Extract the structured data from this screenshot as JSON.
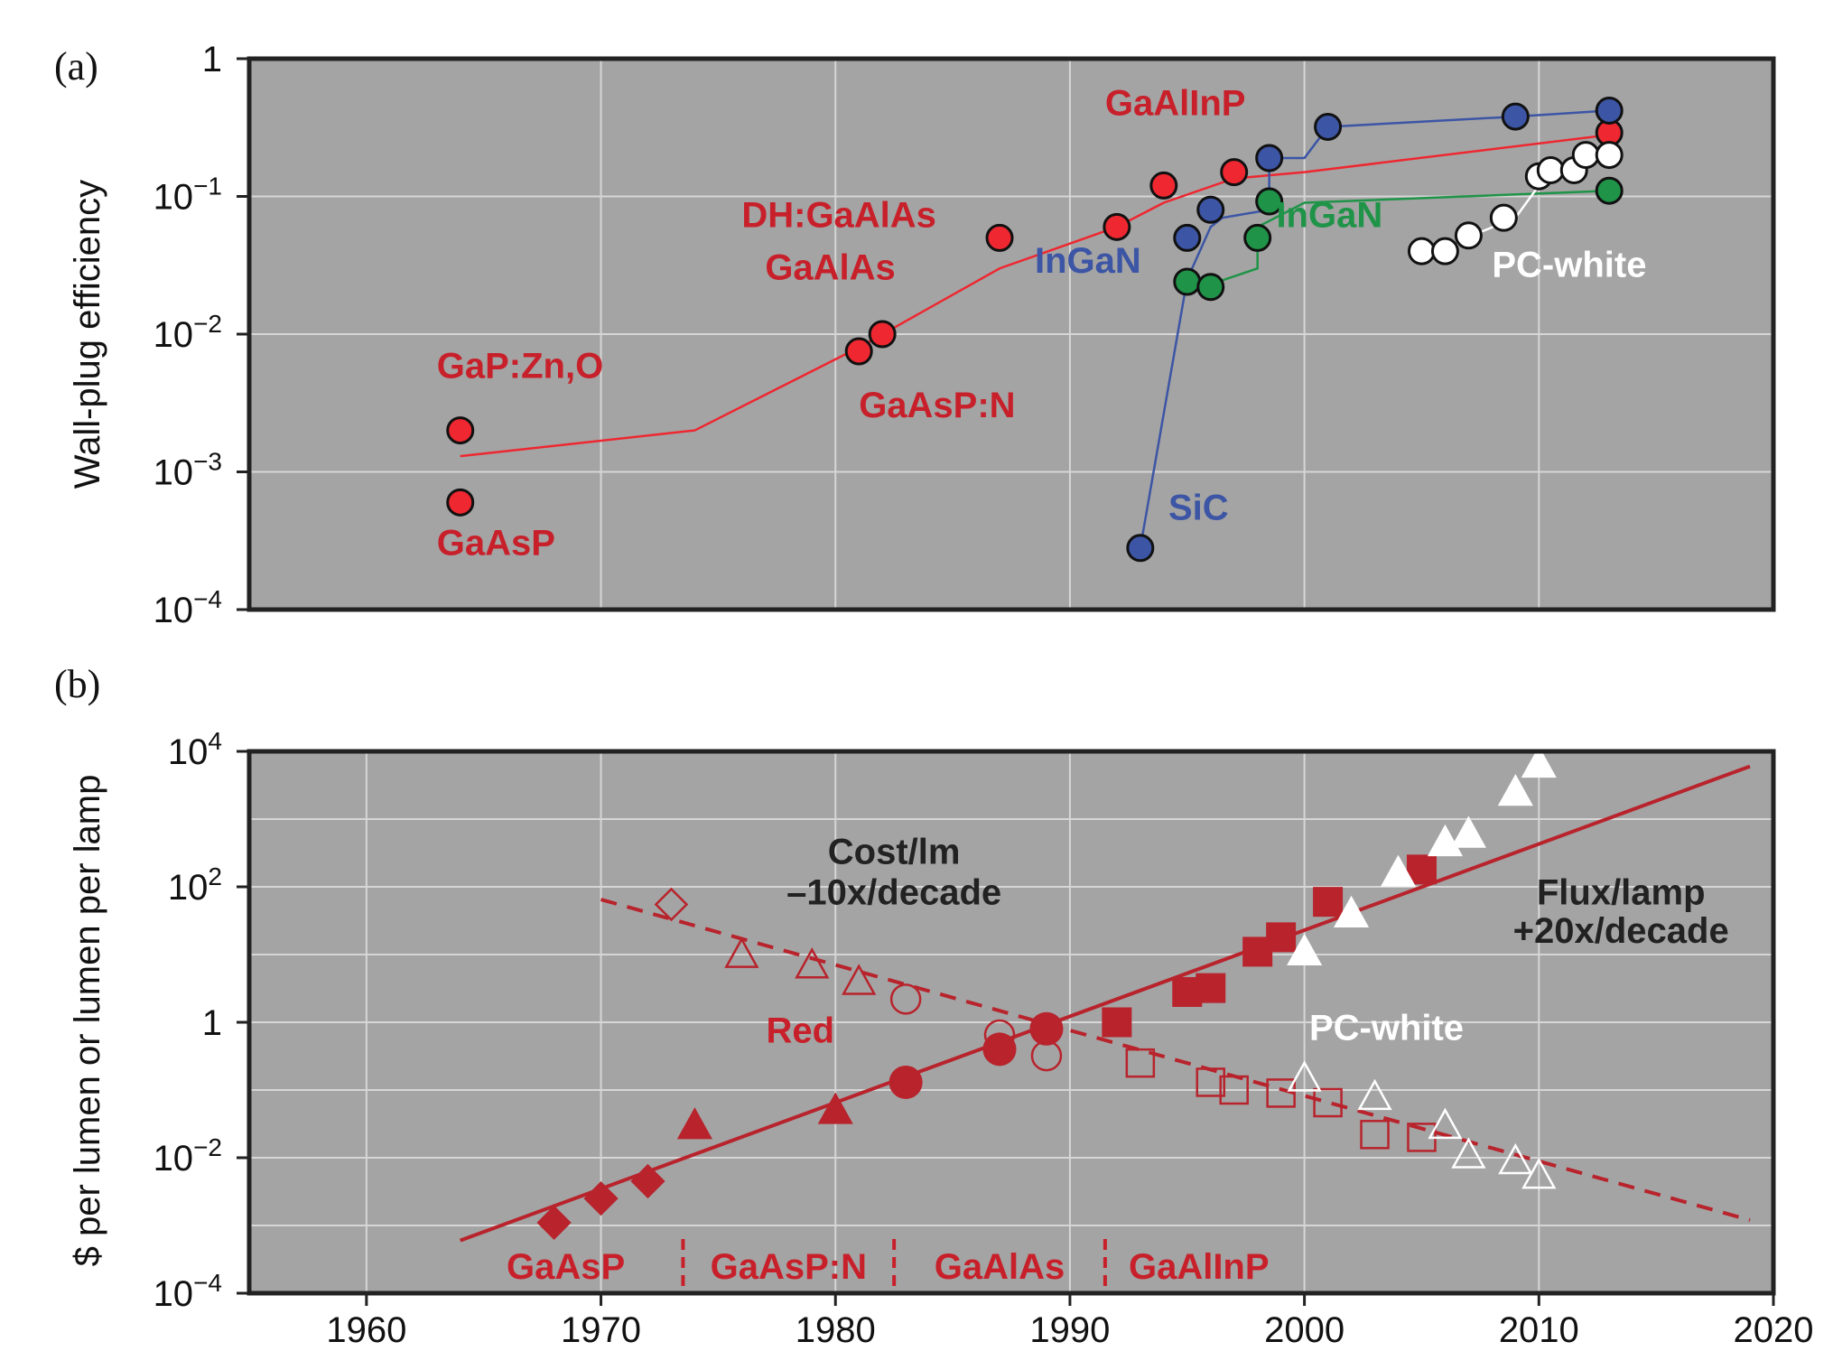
{
  "colors": {
    "panel_bg": "#a4a4a4",
    "grid": "#d6d6d6",
    "red": "#c8202a",
    "red_fill": "#ee2730",
    "blue": "#3c55a5",
    "green": "#1f9448",
    "white": "#ffffff",
    "dark": "#222222",
    "dark_red": "#b8232c"
  },
  "chart_data": [
    {
      "panel": "(a)",
      "type": "line",
      "ylabel": "Wall-plug efficiency",
      "yscale": "log",
      "ylim": [
        0.0001,
        1
      ],
      "xlim": [
        1955,
        2020
      ],
      "y_ticks": [
        {
          "value": 1,
          "label": "1",
          "exp": ""
        },
        {
          "value": 0.1,
          "label": "10",
          "exp": "−1"
        },
        {
          "value": 0.01,
          "label": "10",
          "exp": "−2"
        },
        {
          "value": 0.001,
          "label": "10",
          "exp": "−3"
        },
        {
          "value": 0.0001,
          "label": "10",
          "exp": "−4"
        }
      ],
      "x_gridlines": [
        1970,
        1980,
        1990,
        2000,
        2010
      ],
      "series": [
        {
          "color": "red",
          "line": [
            [
              1964,
              0.0013
            ],
            [
              1974,
              0.002
            ],
            [
              1981,
              0.008
            ],
            [
              1987,
              0.03
            ],
            [
              1992,
              0.06
            ],
            [
              1994,
              0.09
            ],
            [
              1997,
              0.135
            ],
            [
              2000,
              0.15
            ],
            [
              2013,
              0.28
            ]
          ],
          "points": [
            [
              1964,
              0.002
            ],
            [
              1964,
              0.0006
            ],
            [
              1981,
              0.0075
            ],
            [
              1982,
              0.01
            ],
            [
              1987,
              0.05
            ],
            [
              1992,
              0.06
            ],
            [
              1994,
              0.12
            ],
            [
              1997,
              0.15
            ],
            [
              2013,
              0.29
            ]
          ]
        },
        {
          "color": "blue",
          "line": [
            [
              1993,
              0.00028
            ],
            [
              1995,
              0.025
            ],
            [
              1996,
              0.06
            ],
            [
              1996.5,
              0.07
            ],
            [
              1998.5,
              0.08
            ],
            [
              1998.5,
              0.19
            ],
            [
              2000,
              0.19
            ],
            [
              2001,
              0.32
            ],
            [
              2009,
              0.38
            ],
            [
              2013,
              0.42
            ]
          ],
          "points": [
            [
              1993,
              0.00028
            ],
            [
              1995,
              0.05
            ],
            [
              1996,
              0.08
            ],
            [
              1998.5,
              0.19
            ],
            [
              2001,
              0.32
            ],
            [
              2009,
              0.38
            ],
            [
              2013,
              0.42
            ]
          ]
        },
        {
          "color": "green",
          "line": [
            [
              1995,
              0.024
            ],
            [
              1996,
              0.023
            ],
            [
              1998,
              0.03
            ],
            [
              1998,
              0.06
            ],
            [
              2000,
              0.09
            ],
            [
              2013,
              0.11
            ]
          ],
          "points": [
            [
              1995,
              0.024
            ],
            [
              1996,
              0.022
            ],
            [
              1998,
              0.05
            ],
            [
              1998.5,
              0.092
            ],
            [
              2013,
              0.11
            ]
          ]
        },
        {
          "color": "white",
          "line": [
            [
              2005,
              0.04
            ],
            [
              2006,
              0.04
            ],
            [
              2007.5,
              0.055
            ],
            [
              2009,
              0.07
            ],
            [
              2010,
              0.12
            ],
            [
              2010.5,
              0.15
            ],
            [
              2011,
              0.14
            ],
            [
              2011.5,
              0.19
            ],
            [
              2013,
              0.2
            ]
          ],
          "points": [
            [
              2005,
              0.04
            ],
            [
              2006,
              0.04
            ],
            [
              2007,
              0.052
            ],
            [
              2008.5,
              0.07
            ],
            [
              2010,
              0.14
            ],
            [
              2010.5,
              0.155
            ],
            [
              2011.5,
              0.155
            ],
            [
              2012,
              0.2
            ],
            [
              2013,
              0.2
            ]
          ]
        }
      ],
      "labels": [
        {
          "text": "GaP:Zn,O",
          "x": 1963,
          "y": 0.0048,
          "color": "red"
        },
        {
          "text": "GaAsP",
          "x": 1963,
          "y": 0.00025,
          "color": "red"
        },
        {
          "text": "GaAsP:N",
          "x": 1981,
          "y": 0.0025,
          "color": "red"
        },
        {
          "text": "DH:GaAlAs",
          "x": 1976,
          "y": 0.06,
          "color": "red"
        },
        {
          "text": "GaAlAs",
          "x": 1977,
          "y": 0.025,
          "color": "red"
        },
        {
          "text": "GaAlInP",
          "x": 1991.5,
          "y": 0.39,
          "color": "red"
        },
        {
          "text": "InGaN",
          "x": 1988.5,
          "y": 0.028,
          "color": "blue"
        },
        {
          "text": "InGaN",
          "x": 1998.8,
          "y": 0.06,
          "color": "green"
        },
        {
          "text": "SiC",
          "x": 1994.2,
          "y": 0.00045,
          "color": "blue"
        },
        {
          "text": "PC-white",
          "x": 2008,
          "y": 0.026,
          "color": "white"
        }
      ]
    },
    {
      "panel": "(b)",
      "type": "scatter",
      "ylabel": "$ per lumen or lumen per lamp",
      "yscale": "log",
      "ylim": [
        0.0001,
        10000
      ],
      "xlim": [
        1955,
        2020
      ],
      "x_ticks": [
        1960,
        1970,
        1980,
        1990,
        2000,
        2010,
        2020
      ],
      "y_ticks": [
        {
          "value": 10000,
          "label": "10",
          "exp": "4"
        },
        {
          "value": 100,
          "label": "10",
          "exp": "2"
        },
        {
          "value": 1,
          "label": "1",
          "exp": ""
        },
        {
          "value": 0.01,
          "label": "10",
          "exp": "−2"
        },
        {
          "value": 0.0001,
          "label": "10",
          "exp": "−4"
        }
      ],
      "trend_lines": [
        {
          "name": "Flux/lamp",
          "style": "solid",
          "from": [
            1964,
            0.0006
          ],
          "to": [
            2019,
            6000
          ]
        },
        {
          "name": "Cost/lm",
          "style": "dashed",
          "from": [
            1970,
            65
          ],
          "to": [
            2019,
            0.0012
          ]
        }
      ],
      "flux_points": [
        {
          "shape": "diamond",
          "fill": "red",
          "points": [
            [
              1968,
              0.0011
            ],
            [
              1970,
              0.0025
            ],
            [
              1972,
              0.0045
            ]
          ]
        },
        {
          "shape": "triangle",
          "fill": "red",
          "points": [
            [
              1974,
              0.03
            ],
            [
              1980,
              0.05
            ]
          ]
        },
        {
          "shape": "circle",
          "fill": "red",
          "points": [
            [
              1983,
              0.13
            ],
            [
              1987,
              0.4
            ],
            [
              1989,
              0.8
            ]
          ]
        },
        {
          "shape": "square",
          "fill": "red",
          "points": [
            [
              1992,
              1.0
            ],
            [
              1995,
              2.8
            ],
            [
              1996,
              3.2
            ],
            [
              1998,
              11
            ],
            [
              1999,
              18
            ],
            [
              2001,
              60
            ],
            [
              2005,
              180
            ]
          ]
        },
        {
          "shape": "triangle",
          "fill": "white",
          "points": [
            [
              2000,
              11
            ],
            [
              2002,
              40
            ],
            [
              2004,
              160
            ],
            [
              2006,
              450
            ],
            [
              2007,
              600
            ],
            [
              2009,
              2500
            ],
            [
              2010,
              6500
            ]
          ]
        }
      ],
      "cost_points": [
        {
          "shape": "diamond",
          "fill": "none",
          "points": [
            [
              1973,
              55
            ]
          ]
        },
        {
          "shape": "triangle",
          "fill": "none",
          "points": [
            [
              1976,
              10
            ],
            [
              1979,
              7
            ],
            [
              1981,
              4
            ]
          ]
        },
        {
          "shape": "circle",
          "fill": "none",
          "points": [
            [
              1983,
              2.2
            ],
            [
              1987,
              0.65
            ],
            [
              1989,
              0.32
            ]
          ]
        },
        {
          "shape": "square",
          "fill": "none",
          "points": [
            [
              1993,
              0.25
            ],
            [
              1996,
              0.13
            ],
            [
              1997,
              0.1
            ],
            [
              1999,
              0.09
            ],
            [
              2001,
              0.065
            ],
            [
              2003,
              0.022
            ],
            [
              2005,
              0.02
            ]
          ]
        },
        {
          "shape": "triangle",
          "fill": "white_outline",
          "points": [
            [
              2000,
              0.15
            ],
            [
              2003,
              0.08
            ],
            [
              2006,
              0.03
            ],
            [
              2007,
              0.011
            ],
            [
              2009,
              0.009
            ],
            [
              2010,
              0.0055
            ]
          ]
        }
      ],
      "labels": [
        {
          "text": "Cost/lm",
          "x": 1982.5,
          "y": 220,
          "color": "dark"
        },
        {
          "text": "–10x/decade",
          "x": 1982.5,
          "y": 55,
          "color": "dark"
        },
        {
          "text": "Red",
          "x": 1978.5,
          "y": 0.5,
          "color": "red"
        },
        {
          "text": "Flux/lamp",
          "x": 2013.5,
          "y": 55,
          "color": "dark"
        },
        {
          "text": "+20x/decade",
          "x": 2013.5,
          "y": 15,
          "color": "dark"
        },
        {
          "text": "PC-white",
          "x": 2003.5,
          "y": 0.55,
          "color": "white"
        }
      ],
      "material_bands": [
        {
          "text": "GaAsP",
          "x": 1968.5
        },
        {
          "text": "GaAsP:N",
          "x": 1978
        },
        {
          "text": "GaAlAs",
          "x": 1987
        },
        {
          "text": "GaAlInP",
          "x": 1995.5
        }
      ],
      "band_dividers": [
        1973.5,
        1982.5,
        1991.5
      ]
    }
  ]
}
